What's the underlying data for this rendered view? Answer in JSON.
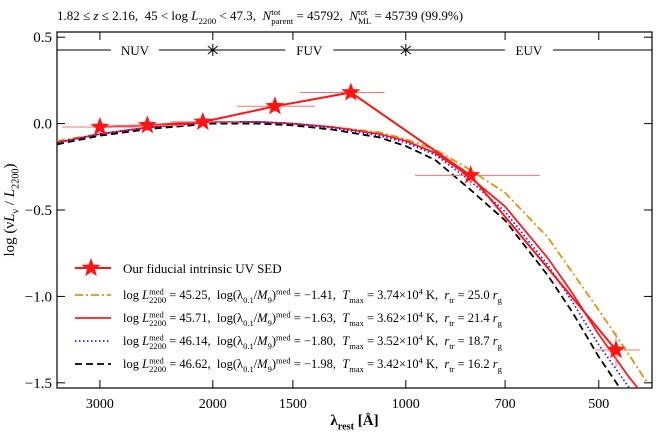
{
  "chart_data": {
    "type": "sed",
    "title": [
      "1.82 ≤ ",
      "z",
      " ≤ 2.16,  45 < log ",
      "L",
      "2200",
      " < 47.3,  ",
      "N",
      "tot",
      "parent",
      " = 45792,  ",
      "N",
      "tot",
      "ML",
      " = 45739 (99.9%)"
    ],
    "xlabel": [
      "λ",
      "rest",
      " [Å]"
    ],
    "ylabel": [
      "log (",
      "ν",
      "L",
      "ν",
      " / ",
      "L",
      "2200",
      ")"
    ],
    "xscale": "log",
    "xlim": [
      3500,
      413
    ],
    "xticks": [
      3000,
      2000,
      1500,
      1000,
      700,
      500
    ],
    "ylim": [
      -1.53,
      0.53
    ],
    "yticks": [
      {
        "value": -1.5,
        "label": "−1.5"
      },
      {
        "value": -1.0,
        "label": "−1.0"
      },
      {
        "value": -0.5,
        "label": "−0.5"
      },
      {
        "value": 0,
        "label": "0.0"
      },
      {
        "value": 0.5,
        "label": "0.5"
      }
    ],
    "regions": {
      "labels": [
        "NUV",
        "FUV",
        "EUV"
      ],
      "boundaries": [
        2000,
        1000
      ]
    },
    "legend": "lower left",
    "points": {
      "name": "Our fiducial intrinsic UV SED",
      "color": "#ff1414",
      "x": [
        3000,
        2530,
        2073,
        1600,
        1218,
        792,
        470
      ],
      "values": [
        -0.02,
        -0.01,
        0.01,
        0.1,
        0.18,
        -0.3,
        -1.31
      ],
      "x_ranges": [
        [
          3437,
          2650
        ],
        [
          2845,
          2208
        ],
        [
          2333,
          1815
        ],
        [
          1833,
          1387
        ],
        [
          1462,
          1079
        ],
        [
          968,
          618
        ],
        [
          507,
          431
        ]
      ],
      "yerr": [
        0.02,
        0.02,
        0.02,
        0.03,
        0.03,
        0.06,
        0.1
      ]
    },
    "x": [
      3500,
      3000,
      2500,
      2000,
      1700,
      1500,
      1300,
      1100,
      1000,
      900,
      800,
      700,
      600,
      550,
      500,
      450,
      420
    ],
    "series": [
      {
        "name": [
          "log ",
          "L",
          "med",
          "2200",
          " = 45.25,  log(",
          "λ",
          "0.1",
          "/",
          "M",
          "9",
          ")",
          "med",
          " = −1.41,  ",
          "T",
          "max",
          " = 3.74×10",
          "4",
          " K,  ",
          "r",
          "tr",
          " = 25.0 ",
          "r",
          "g"
        ],
        "color": "#e8900a",
        "linestyle": "dashdot",
        "values": [
          -0.1,
          -0.06,
          -0.02,
          0.01,
          0.01,
          0.0,
          -0.02,
          -0.05,
          -0.09,
          -0.15,
          -0.26,
          -0.4,
          -0.66,
          -0.86,
          -1.08,
          -1.33,
          -1.5
        ]
      },
      {
        "name": [
          "log ",
          "L",
          "med",
          "2200",
          " = 45.71,  log(",
          "λ",
          "0.1",
          "/",
          "M",
          "9",
          ")",
          "med",
          " = −1.63,  ",
          "T",
          "max",
          " = 3.62×10",
          "4",
          " K,  ",
          "r",
          "tr",
          " = 21.4 ",
          "r",
          "g"
        ],
        "color": "#ff1a1a",
        "linestyle": "solid",
        "values": [
          -0.11,
          -0.06,
          -0.02,
          0.01,
          0.01,
          0.0,
          -0.02,
          -0.06,
          -0.1,
          -0.17,
          -0.3,
          -0.48,
          -0.78,
          -0.98,
          -1.22,
          -1.46,
          -1.6
        ]
      },
      {
        "name": [
          "log ",
          "L",
          "med",
          "2200",
          " = 46.14,  log(",
          "λ",
          "0.1",
          "/",
          "M",
          "9",
          ")",
          "med",
          " = −1.80,  ",
          "T",
          "max",
          " = 3.52×10",
          "4",
          " K,  ",
          "r",
          "tr",
          " = 18.7 ",
          "r",
          "g"
        ],
        "color": "#1f1fff",
        "linestyle": "dotted",
        "values": [
          -0.11,
          -0.06,
          -0.02,
          0.01,
          0.01,
          0.0,
          -0.025,
          -0.07,
          -0.11,
          -0.18,
          -0.32,
          -0.51,
          -0.82,
          -1.03,
          -1.28,
          -1.52,
          -1.66
        ]
      },
      {
        "name": [
          "log ",
          "L",
          "med",
          "2200",
          " = 46.62,  log(",
          "λ",
          "0.1",
          "/",
          "M",
          "9",
          ")",
          "med",
          " = −1.98,  ",
          "T",
          "max",
          " = 3.42×10",
          "4",
          " K,  ",
          "r",
          "tr",
          " = 16.2 ",
          "r",
          "g"
        ],
        "color": "#000000",
        "linestyle": "dashed",
        "values": [
          -0.12,
          -0.07,
          -0.03,
          0.0,
          0.0,
          -0.01,
          -0.035,
          -0.08,
          -0.13,
          -0.21,
          -0.37,
          -0.56,
          -0.88,
          -1.09,
          -1.35,
          -1.6,
          -1.74
        ]
      }
    ]
  }
}
